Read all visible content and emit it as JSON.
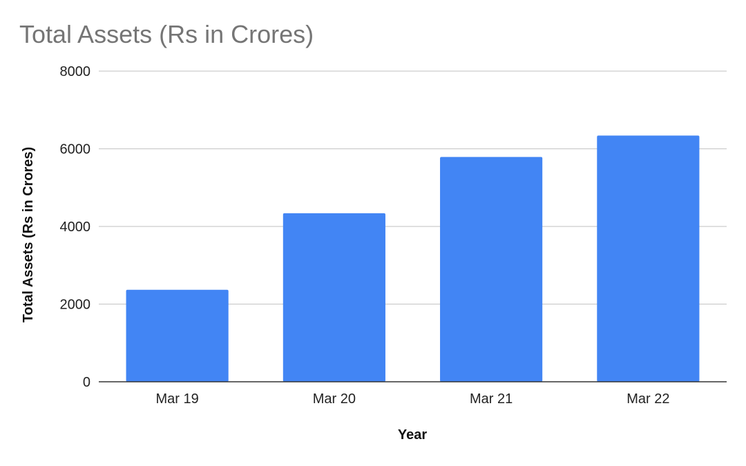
{
  "chart_data": {
    "type": "bar",
    "title": "Total Assets (Rs in Crores)",
    "xlabel": "Year",
    "ylabel": "Total Assets (Rs in Crores)",
    "categories": [
      "Mar 19",
      "Mar 20",
      "Mar 21",
      "Mar 22"
    ],
    "series": [
      {
        "values": [
          2370,
          4340,
          5790,
          6340
        ]
      }
    ],
    "ylim": [
      0,
      8000
    ],
    "yticks": [
      0,
      2000,
      4000,
      6000,
      8000
    ],
    "grid": true,
    "legend": "none",
    "colors": {
      "bar": "#4285f4",
      "title": "#757575",
      "grid": "#cccccc",
      "axis": "#333333"
    }
  }
}
